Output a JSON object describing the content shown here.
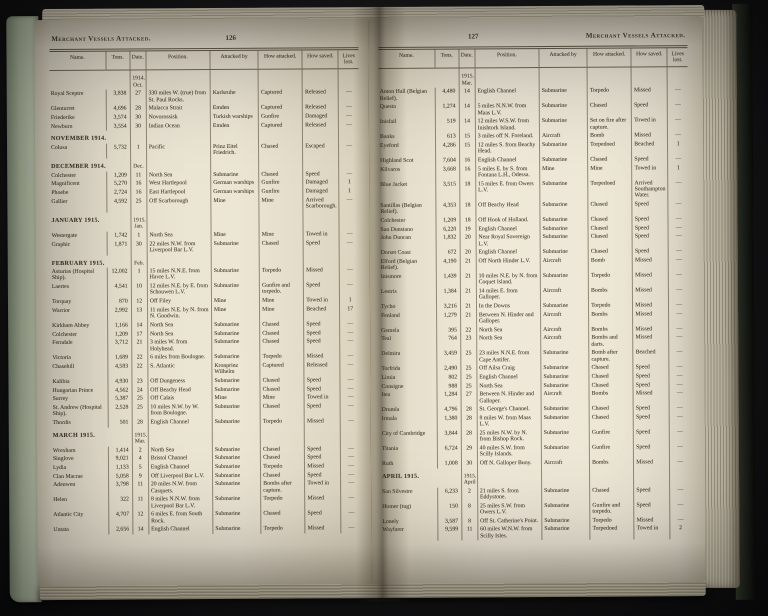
{
  "left_page": {
    "running_title": "Merchant Vessels Attacked.",
    "folio": "126",
    "columns": [
      "Name.",
      "Tons.",
      "Date.",
      "Position.",
      "Attacked by",
      "How attacked.",
      "How saved.",
      "Lives lost."
    ],
    "sections": [
      {
        "heading": "",
        "date_note": "1914. Oct.",
        "rows": [
          [
            "Royal Sceptre",
            "3,838",
            "27",
            "330 miles W. (true) from St. Paul Rocks.",
            "Karlsruhe",
            "Captured",
            "Released",
            "—"
          ],
          [
            "Glenturret",
            "4,696",
            "28",
            "Malacca Strait",
            "Emden",
            "Captured",
            "Released",
            "—"
          ],
          [
            "Friederike",
            "3,574",
            "30",
            "Novorossisk",
            "Turkish warships",
            "Gunfire",
            "Damaged",
            "—"
          ],
          [
            "Newburn",
            "3,554",
            "30",
            "Indian Ocean",
            "Emden",
            "Captured",
            "Released",
            "—"
          ]
        ]
      },
      {
        "heading": "November 1914.",
        "date_note": "",
        "rows": [
          [
            "Colusa",
            "5,732",
            "1",
            "Pacific",
            "Prinz Eitel Friedrich.",
            "Chased",
            "Escaped",
            "—"
          ]
        ]
      },
      {
        "heading": "December 1914.",
        "date_note": "Dec.",
        "rows": [
          [
            "Colchester",
            "1,209",
            "11",
            "North Sea",
            "Submarine",
            "Chased",
            "Speed",
            "—"
          ],
          [
            "Magnificent",
            "5,270",
            "16",
            "West Hartlepool",
            "German warships",
            "Gunfire",
            "Damaged",
            "1"
          ],
          [
            "Phoebe",
            "2,724",
            "16",
            "East Hartlepool",
            "German warships",
            "Gunfire",
            "Damaged",
            "1"
          ],
          [
            "Gallier",
            "4,592",
            "25",
            "Off Scarborough",
            "Mine",
            "Mine",
            "Arrived Scarborough.",
            "—"
          ]
        ]
      },
      {
        "heading": "January 1915.",
        "date_note": "1915. Jan.",
        "rows": [
          [
            "Westergate",
            "1,742",
            "1",
            "North Sea",
            "Mine",
            "Mine",
            "Towed in",
            "—"
          ],
          [
            "Graphic",
            "1,871",
            "30",
            "22 miles N.W. from Liverpool Bar L.V.",
            "Submarine",
            "Chased",
            "Speed",
            "—"
          ]
        ]
      },
      {
        "heading": "February 1915.",
        "date_note": "Feb.",
        "rows": [
          [
            "Asturias (Hospital Ship).",
            "12,002",
            "1",
            "15 miles N.N.E. from Havre L.V.",
            "Submarine",
            "Torpedo",
            "Missed",
            "—"
          ],
          [
            "Laertes",
            "4,541",
            "10",
            "12 miles N.E. by E. from Schouwen L.V.",
            "Submarine",
            "Gunfire and torpedo.",
            "Speed",
            "—"
          ],
          [
            "Torquay",
            "870",
            "12",
            "Off Filey",
            "Mine",
            "Mine",
            "Towed in",
            "1"
          ],
          [
            "Warrior",
            "2,992",
            "13",
            "11 miles N.E. by N. from N. Goodwin.",
            "Mine",
            "Mine",
            "Beached",
            "17"
          ],
          [
            "Kirkham Abbey",
            "1,166",
            "14",
            "North Sea",
            "Submarine",
            "Chased",
            "Speed",
            "—"
          ],
          [
            "Colchester",
            "1,209",
            "17",
            "North Sea",
            "Submarine",
            "Chased",
            "Speed",
            "—"
          ],
          [
            "Ferndale",
            "3,712",
            "21",
            "3 miles W. from Holyhead.",
            "Submarine",
            "Chased",
            "Speed",
            "—"
          ],
          [
            "Victoria",
            "1,689",
            "22",
            "6 miles from Boulogne.",
            "Submarine",
            "Torpedo",
            "Missed",
            "—"
          ],
          [
            "Chasehill",
            "4,583",
            "22",
            "S. Atlantic",
            "Kronprinz Wilhelm",
            "Captured",
            "Released",
            "—"
          ],
          [
            "Kalibia",
            "4,930",
            "23",
            "Off Dungeness",
            "Submarine",
            "Chased",
            "Speed",
            "—"
          ],
          [
            "Hungarian Prince",
            "4,562",
            "24",
            "Off Beachy Head",
            "Submarine",
            "Chased",
            "Speed",
            "—"
          ],
          [
            "Surrey",
            "5,387",
            "25",
            "Off Calais",
            "Mine",
            "Mine",
            "Towed in",
            "—"
          ],
          [
            "St. Andrew (Hospital Ship).",
            "2,528",
            "25",
            "10 miles N.W. by W. from Boulogne.",
            "Submarine",
            "Chased",
            "Speed",
            "—"
          ],
          [
            "Thordis",
            "501",
            "28",
            "English Channel",
            "Submarine",
            "Torpedo",
            "Missed",
            "—"
          ]
        ]
      },
      {
        "heading": "March 1915.",
        "date_note": "1915. Mar.",
        "rows": [
          [
            "Wrexham",
            "1,414",
            "2",
            "North Sea",
            "Submarine",
            "Chased",
            "Speed",
            "—"
          ],
          [
            "Singlove",
            "9,021",
            "4",
            "Bristol Channel",
            "Submarine",
            "Chased",
            "Speed",
            "—"
          ],
          [
            "Lydia",
            "1,133",
            "5",
            "English Channel",
            "Submarine",
            "Torpedo",
            "Missed",
            "—"
          ],
          [
            "Clan Macrae",
            "5,058",
            "9",
            "Off Liverpool Bar L.V.",
            "Submarine",
            "Chased",
            "Speed",
            "—"
          ],
          [
            "Adenwen",
            "3,798",
            "11",
            "20 miles N.W. from Casquets.",
            "Submarine",
            "Bombs after capture.",
            "Towed in",
            "—"
          ],
          [
            "Helen",
            "322",
            "11",
            "8 miles N.N.W. from Liverpool Bar L.V.",
            "Submarine",
            "Torpedo",
            "Missed",
            "—"
          ],
          [
            "Atlantic City",
            "4,707",
            "12",
            "6 miles E. from South Rock.",
            "Submarine",
            "Chased",
            "Speed",
            "—"
          ],
          [
            "Untata",
            "2,656",
            "14",
            "English Channel",
            "Submarine",
            "Torpedo",
            "Missed",
            "—"
          ]
        ]
      }
    ]
  },
  "right_page": {
    "running_title": "Merchant Vessels Attacked.",
    "folio": "127",
    "columns": [
      "Name.",
      "Tons.",
      "Date.",
      "Position.",
      "Attacked by",
      "How attacked.",
      "How saved.",
      "Lives lost."
    ],
    "sections": [
      {
        "heading": "",
        "date_note": "1915. Mar.",
        "rows": [
          [
            "Anton Hall (Belgian Relief).",
            "4,480",
            "14",
            "English Channel",
            "Submarine",
            "Torpedo",
            "Missed",
            "—"
          ],
          [
            "Questa",
            "1,274",
            "14",
            "5 miles N.N.W. from Maas L.V.",
            "Submarine",
            "Chased",
            "Speed",
            "—"
          ],
          [
            "Inisfail",
            "519",
            "14",
            "12 miles W.S.W. from Inishtork Island.",
            "Submarine",
            "Set on fire after capture.",
            "Towed in",
            "—"
          ],
          [
            "Banks",
            "613",
            "15",
            "3 miles off N. Foreland.",
            "Aircraft",
            "Bomb",
            "Missed",
            "—"
          ],
          [
            "Eyeford",
            "4,286",
            "15",
            "12 miles S. from Beachy Head.",
            "Submarine",
            "Torpedoed",
            "Beached",
            "1"
          ],
          [
            "Highland Scot",
            "7,604",
            "16",
            "English Channel",
            "Submarine",
            "Chased",
            "Speed",
            "—"
          ],
          [
            "Kilvaros",
            "3,668",
            "16",
            "5 miles E. by S. from Fontana L.H., Odessa.",
            "Mine",
            "Mine",
            "Towed in",
            "1"
          ],
          [
            "Blue Jacket",
            "3,515",
            "18",
            "15 miles E. from Owers L.V.",
            "Submarine",
            "Torpedoed",
            "Arrived Southampton Water.",
            "—"
          ],
          [
            "Santillas (Belgian Relief).",
            "4,353",
            "18",
            "Off Beachy Head",
            "Submarine",
            "Chased",
            "Speed",
            "—"
          ],
          [
            "Colchester",
            "1,209",
            "18",
            "Off Hook of Holland.",
            "Submarine",
            "Chased",
            "Speed",
            "—"
          ],
          [
            "San Dunstano",
            "6,220",
            "19",
            "English Channel",
            "Submarine",
            "Chased",
            "Speed",
            "—"
          ],
          [
            "John Duncan",
            "1,832",
            "20",
            "Near Royal Sovereign L.V.",
            "Submarine",
            "Chased",
            "Speed",
            "—"
          ],
          [
            "Dorset Coast",
            "672",
            "20",
            "English Channel",
            "Submarine",
            "Chased",
            "Speed",
            "—"
          ],
          [
            "Elford (Belgian Relief).",
            "4,190",
            "21",
            "Off North Hinder L.V.",
            "Aircraft",
            "Bomb",
            "Missed",
            "—"
          ],
          [
            "Inismore",
            "1,439",
            "21",
            "10 miles N.E. by N. from Coquet Island.",
            "Submarine",
            "Torpedo",
            "Missed",
            "—"
          ],
          [
            "Lestris",
            "1,384",
            "21",
            "14 miles E. from Galloper.",
            "Aircraft",
            "Bombs",
            "Missed",
            "—"
          ],
          [
            "Tycho",
            "3,216",
            "21",
            "In the Downs",
            "Submarine",
            "Torpedo",
            "Missed",
            "—"
          ],
          [
            "Fenland",
            "1,279",
            "21",
            "Between N. Hinder and Galloper.",
            "Aircraft",
            "Bombs",
            "Missed",
            "—"
          ],
          [
            "Gemela",
            "395",
            "22",
            "North Sea",
            "Aircraft",
            "Bombs",
            "Missed",
            "—"
          ],
          [
            "Teal",
            "764",
            "23",
            "North Sea",
            "Aircraft",
            "Bombs and darts.",
            "Missed",
            "—"
          ],
          [
            "Delmira",
            "3,459",
            "25",
            "23 miles N.N.E. from Cape Antifer.",
            "Submarine",
            "Bomb after capture.",
            "Beached",
            "—"
          ],
          [
            "Torfrida",
            "2,490",
            "25",
            "Off Ailsa Craig",
            "Submarine",
            "Chased",
            "Speed",
            "—"
          ],
          [
            "Limia",
            "802",
            "25",
            "English Channel",
            "Submarine",
            "Chased",
            "Speed",
            "—"
          ],
          [
            "Consigne",
            "988",
            "25",
            "North Sea",
            "Submarine",
            "Chased",
            "Speed",
            "—"
          ],
          [
            "Itea",
            "1,284",
            "27",
            "Between N. Hinder and Galloper.",
            "Aircraft",
            "Bombs",
            "Missed",
            "—"
          ],
          [
            "Drumla",
            "4,796",
            "28",
            "St. George's Channel.",
            "Submarine",
            "Chased",
            "Speed",
            "—"
          ],
          [
            "Irmala",
            "1,380",
            "28",
            "8 miles W. from Maas L.V.",
            "Submarine",
            "Chased",
            "Speed",
            "—"
          ],
          [
            "City of Cambridge",
            "3,844",
            "28",
            "25 miles N.W. by N. from Bishop Rock.",
            "Submarine",
            "Gunfire",
            "Speed",
            "—"
          ],
          [
            "Titania",
            "6,724",
            "29",
            "40 miles S.W. from Scilly Islands.",
            "Submarine",
            "Gunfire",
            "Speed",
            "—"
          ],
          [
            "Ruth",
            "1,008",
            "30",
            "Off N. Galloper Buoy.",
            "Aircraft",
            "Bombs",
            "Missed",
            "—"
          ]
        ]
      },
      {
        "heading": "April 1915.",
        "date_note": "1915. April",
        "rows": [
          [
            "San Silvestre",
            "6,233",
            "2",
            "21 miles S. from Eddystone.",
            "Submarine",
            "Chased",
            "Speed",
            "—"
          ],
          [
            "Homer (tug)",
            "150",
            "8",
            "25 miles S.W. from Owers L.V.",
            "Submarine",
            "Gunfire and torpedo.",
            "Speed",
            "—"
          ],
          [
            "Lonely",
            "3,587",
            "8",
            "Off St. Catherine's Point.",
            "Submarine",
            "Torpedo",
            "Missed",
            "—"
          ],
          [
            "Wayfarer",
            "9,599",
            "11",
            "60 miles W.N.W. from Scilly Isles.",
            "Submarine",
            "Torpedoed",
            "Towed in",
            "2"
          ]
        ]
      }
    ]
  }
}
